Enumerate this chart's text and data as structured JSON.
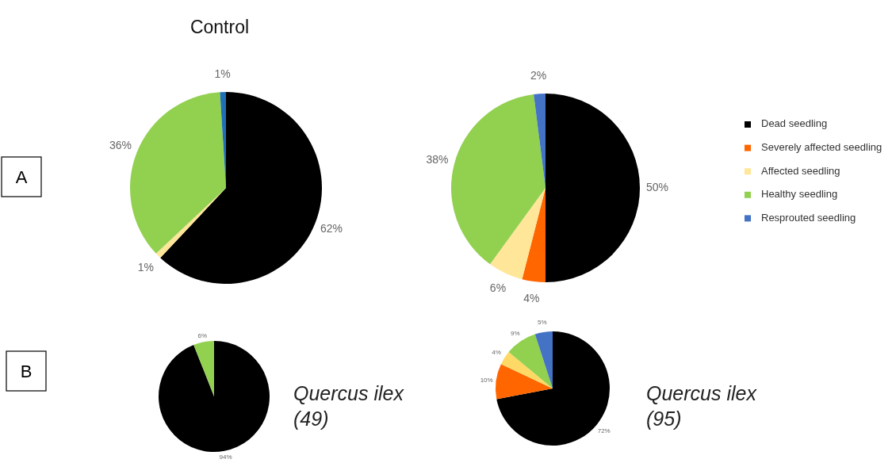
{
  "chart_data": [
    {
      "type": "pie",
      "title": "Control",
      "categories": [
        null,
        null,
        null,
        null
      ],
      "values": [
        62,
        1,
        36,
        1
      ],
      "value_labels": [
        "62%",
        "1%",
        "36%",
        "1%"
      ],
      "colors": [
        "#000000",
        "#ffe699",
        "#92d050",
        "#1f6fb5"
      ],
      "legend": false,
      "annotations": [
        "A"
      ]
    },
    {
      "type": "pie",
      "categories": [
        "Dead seedling",
        "Severely affected seedling",
        "Affected seedling",
        "Healthy seedling",
        "Resprouted seedling"
      ],
      "values": [
        50,
        4,
        6,
        38,
        2
      ],
      "value_labels": [
        "50%",
        "4%",
        "6%",
        "38%",
        "2%"
      ],
      "colors": [
        "#000000",
        "#ff6600",
        "#ffe699",
        "#92d050",
        "#4472c4"
      ],
      "legend": "right"
    },
    {
      "type": "pie",
      "categories": [
        null,
        null
      ],
      "values": [
        94,
        6
      ],
      "value_labels": [
        "94%",
        "6%"
      ],
      "colors": [
        "#000000",
        "#92d050"
      ],
      "legend": false,
      "annotations": [
        "B",
        "Quercus ilex (49)"
      ]
    },
    {
      "type": "pie",
      "categories": [
        null,
        null,
        null,
        null,
        null
      ],
      "values": [
        72,
        10,
        4,
        9,
        5
      ],
      "value_labels": [
        "72%",
        "10%",
        "4%",
        "9%",
        "5%"
      ],
      "colors": [
        "#000000",
        "#ff6600",
        "#ffd966",
        "#92d050",
        "#4472c4"
      ],
      "legend": false,
      "annotations": [
        "Quercus ilex (95)"
      ]
    }
  ]
}
